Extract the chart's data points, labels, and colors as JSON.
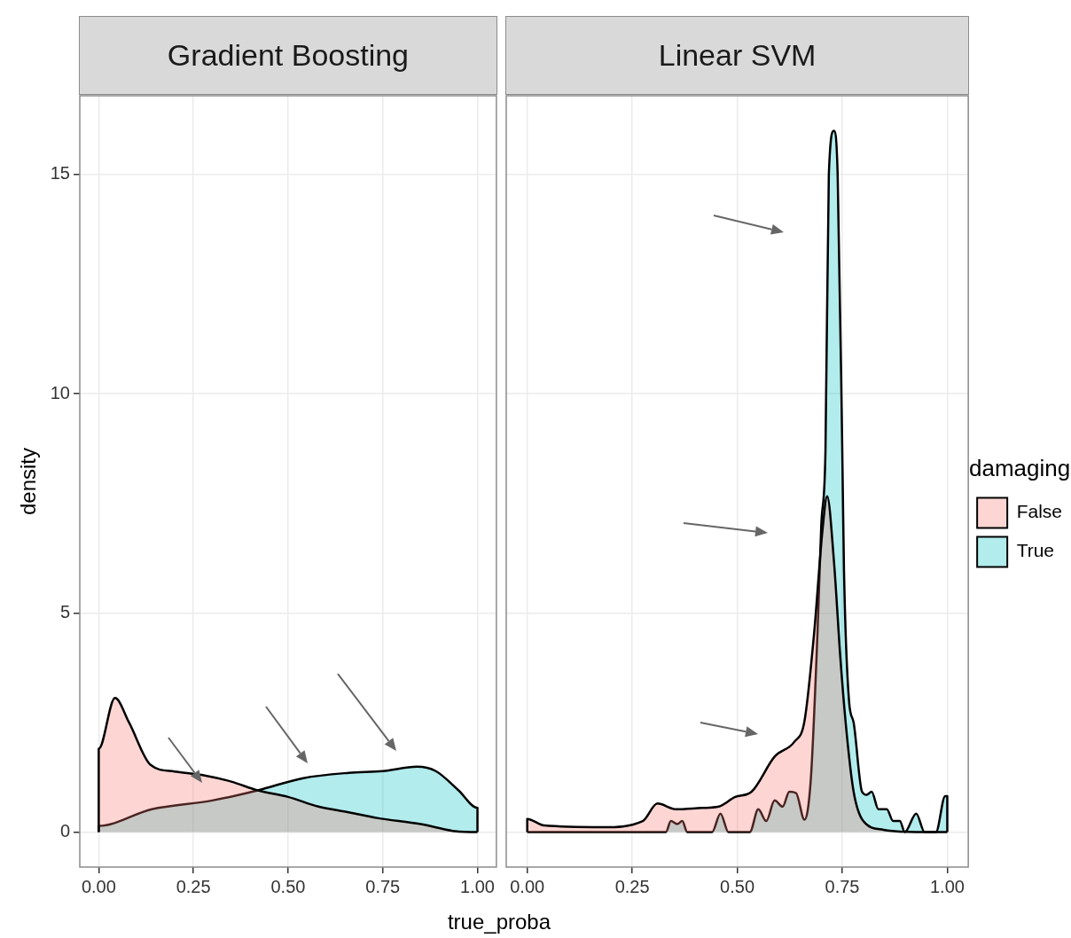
{
  "chart_data": [
    {
      "type": "area",
      "title": "Gradient Boosting",
      "ylabel": "density",
      "xlabel": "true_proba",
      "xlim": [
        -0.05,
        1.05
      ],
      "ylim": [
        -0.8,
        16.8
      ],
      "xticks": [
        {
          "value": 0,
          "label": "0.00"
        },
        {
          "value": 0.25,
          "label": "0.25"
        },
        {
          "value": 0.5,
          "label": "0.50"
        },
        {
          "value": 0.75,
          "label": "0.75"
        },
        {
          "value": 1,
          "label": "1.00"
        }
      ],
      "yticks": [
        0,
        5,
        10,
        15
      ],
      "grid": true,
      "legend": false,
      "series": [
        {
          "color": "#f8766d",
          "x": [
            0,
            0,
            0.043,
            0.08,
            0.137,
            0.2,
            0.28,
            0.35,
            0.42,
            0.5,
            0.58,
            0.66,
            0.735,
            0.85,
            0.94,
            1,
            1
          ],
          "values": [
            0,
            1.9,
            3.06,
            2.5,
            1.53,
            1.38,
            1.29,
            1.15,
            0.95,
            0.8,
            0.58,
            0.45,
            0.32,
            0.18,
            0.02,
            0,
            0
          ]
        },
        {
          "color": "#00bfc4",
          "x": [
            0,
            0,
            0.14,
            0.3,
            0.42,
            0.54,
            0.66,
            0.75,
            0.84,
            0.89,
            0.95,
            1,
            1
          ],
          "values": [
            0,
            0.14,
            0.52,
            0.72,
            0.95,
            1.23,
            1.35,
            1.39,
            1.49,
            1.39,
            0.95,
            0.55,
            0
          ]
        }
      ]
    },
    {
      "type": "area",
      "title": "Linear SVM",
      "xlim": [
        -0.05,
        1.05
      ],
      "ylim": [
        -0.8,
        16.8
      ],
      "xticks": [
        {
          "value": 0,
          "label": "0.00"
        },
        {
          "value": 0.25,
          "label": "0.25"
        },
        {
          "value": 0.5,
          "label": "0.50"
        },
        {
          "value": 0.75,
          "label": "0.75"
        },
        {
          "value": 1,
          "label": "1.00"
        }
      ],
      "yticks": [
        0,
        5,
        10,
        15
      ],
      "grid": true,
      "tick_labels": "x",
      "legend": "right",
      "legend_title": "damaging",
      "series": [
        {
          "name": "False",
          "color": "#f8766d",
          "x": [
            0,
            0,
            0.04,
            0.18,
            0.275,
            0.31,
            0.354,
            0.416,
            0.456,
            0.495,
            0.534,
            0.589,
            0.636,
            0.66,
            0.683,
            0.703,
            0.714,
            0.73,
            0.746,
            0.761,
            0.777,
            0.8,
            0.848,
            0.926,
            1
          ],
          "values": [
            0,
            0.3,
            0.15,
            0.11,
            0.25,
            0.65,
            0.52,
            0.55,
            0.58,
            0.8,
            0.92,
            1.72,
            2.06,
            2.53,
            4.54,
            6.9,
            7.66,
            6.2,
            3.9,
            2.2,
            0.92,
            0.25,
            0.05,
            0,
            0
          ]
        },
        {
          "name": "True",
          "color": "#00bfc4",
          "x": [
            0,
            0.33,
            0.342,
            0.357,
            0.369,
            0.381,
            0.44,
            0.46,
            0.479,
            0.53,
            0.55,
            0.569,
            0.589,
            0.608,
            0.624,
            0.64,
            0.66,
            0.675,
            0.691,
            0.7,
            0.71,
            0.718,
            0.73,
            0.739,
            0.75,
            0.754,
            0.766,
            0.777,
            0.797,
            0.808,
            0.82,
            0.836,
            0.856,
            0.871,
            0.887,
            0.899,
            0.926,
            0.946,
            0.973,
            0.995,
            1,
            1
          ],
          "values": [
            0,
            0,
            0.25,
            0.18,
            0.25,
            0,
            0,
            0.42,
            0,
            0,
            0.52,
            0.25,
            0.72,
            0.58,
            0.92,
            0.89,
            0.28,
            1.19,
            4.54,
            7,
            8.7,
            15,
            16,
            15,
            8.7,
            6,
            3,
            2.5,
            0.92,
            0.85,
            0.92,
            0.52,
            0.52,
            0.25,
            0.25,
            0,
            0.42,
            0,
            0,
            0.82,
            0.82,
            0
          ]
        }
      ]
    }
  ]
}
